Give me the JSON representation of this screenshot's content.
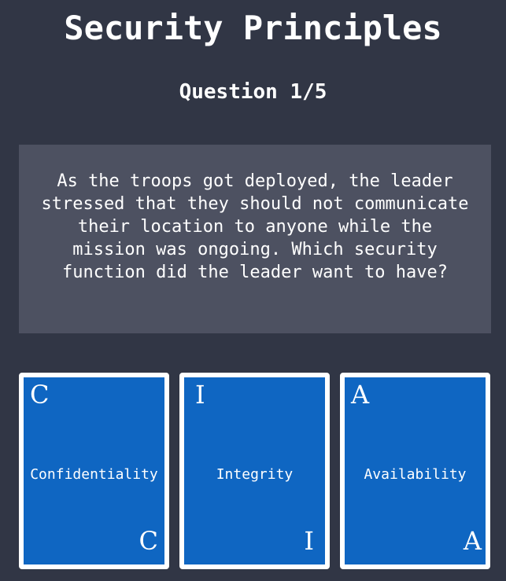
{
  "header": {
    "title": "Security Principles",
    "question_counter": "Question 1/5"
  },
  "question": {
    "text": "As the troops got deployed, the leader stressed that they should not communicate their location to anyone while the mission was ongoing. Which security function did the leader want to have?"
  },
  "cards": [
    {
      "letter": "C",
      "label": "Confidentiality"
    },
    {
      "letter": "I",
      "label": "Integrity"
    },
    {
      "letter": "A",
      "label": "Availability"
    }
  ],
  "colors": {
    "background": "#313645",
    "question_box": "#4d5161",
    "card_fill": "#0f66c2",
    "card_border": "#ffffff",
    "text": "#ffffff"
  }
}
